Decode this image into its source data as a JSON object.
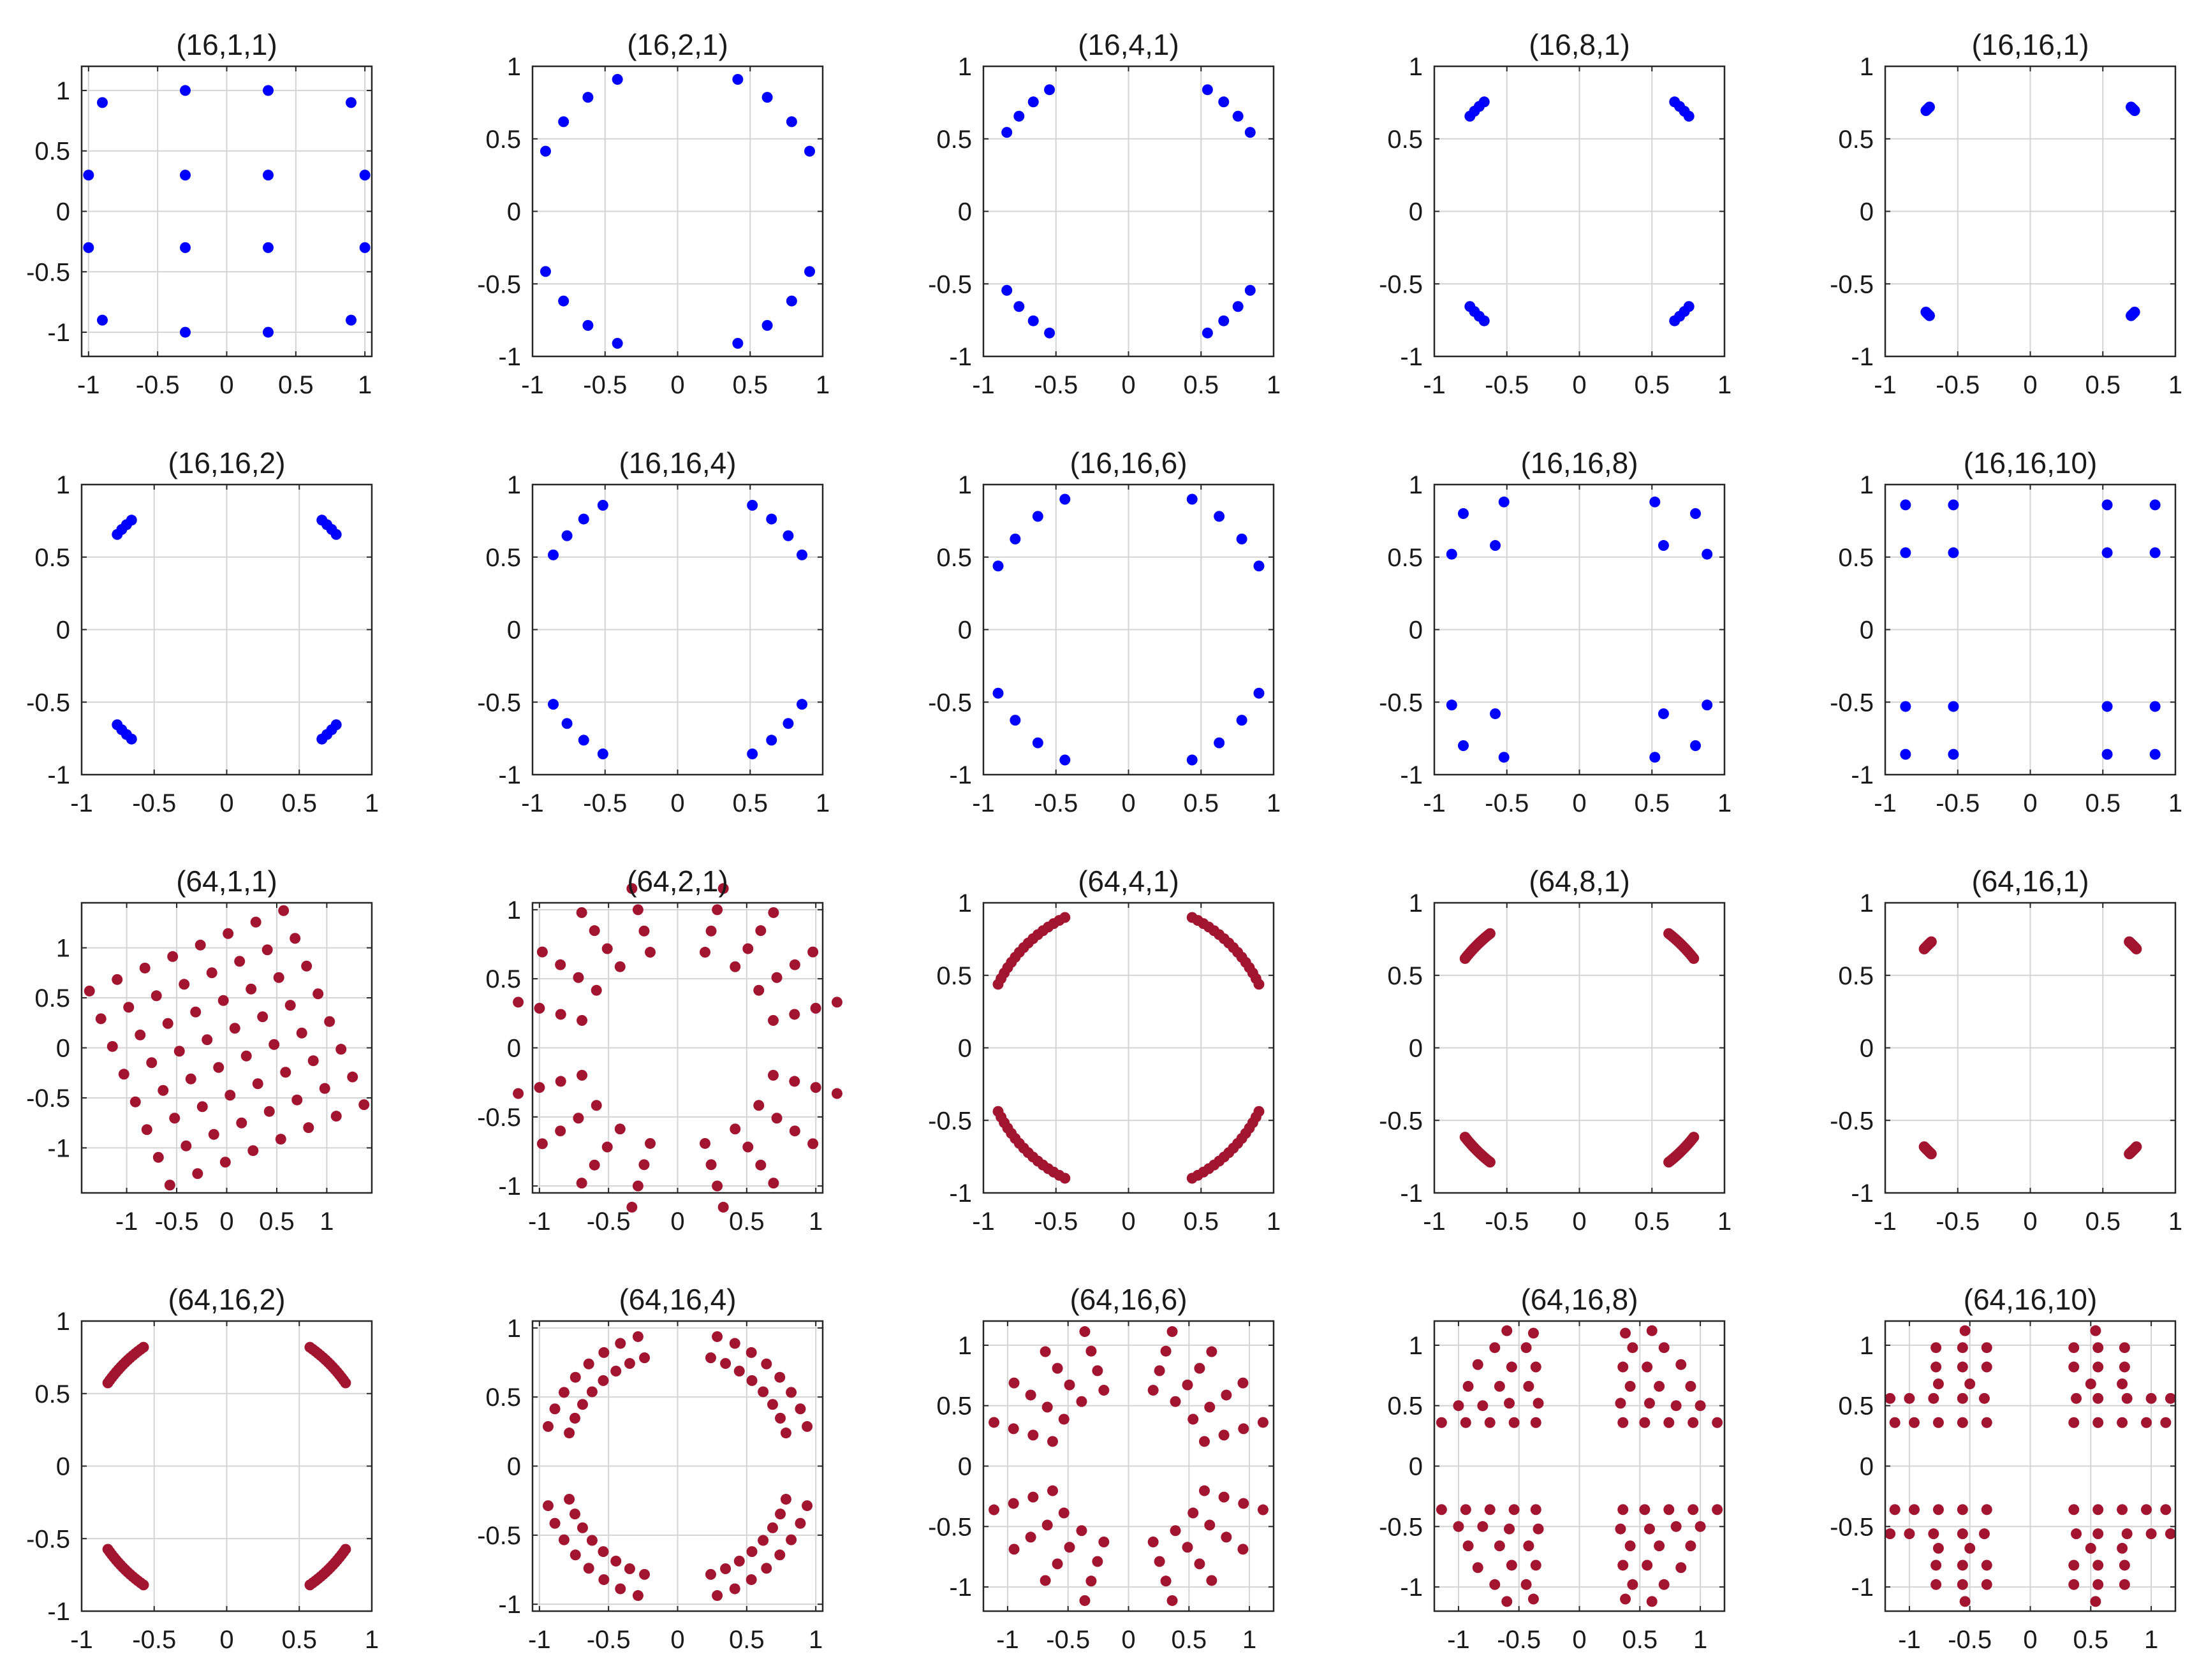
{
  "colors": {
    "blue": "#0000ff",
    "red": "#a2142f",
    "grid": "#d4d4d4",
    "axis": "#262626"
  },
  "chart_data": [
    {
      "type": "scatter",
      "title": "(16,1,1)",
      "color": "blue",
      "grid": true,
      "xlim": [
        -1.05,
        1.05
      ],
      "ylim": [
        -1.2,
        1.2
      ],
      "xticks": [
        -1,
        -0.5,
        0,
        0.5,
        1
      ],
      "xtick_labels": [
        "-1",
        "-0.5",
        "0",
        "0.5",
        "1"
      ],
      "yticks": [
        -1,
        -0.5,
        0,
        0.5,
        1
      ],
      "ytick_labels": [
        "-1",
        "-0.5",
        "0",
        "0.5",
        "1"
      ],
      "gen": {
        "kind": "points",
        "pts": [
          [
            -0.9,
            0.9
          ],
          [
            -0.3,
            1.0
          ],
          [
            0.3,
            1.0
          ],
          [
            0.9,
            0.9
          ],
          [
            -1.0,
            0.3
          ],
          [
            -0.3,
            0.3
          ],
          [
            0.3,
            0.3
          ],
          [
            1.0,
            0.3
          ],
          [
            -1.0,
            -0.3
          ],
          [
            -0.3,
            -0.3
          ],
          [
            0.3,
            -0.3
          ],
          [
            1.0,
            -0.3
          ],
          [
            -0.9,
            -0.9
          ],
          [
            -0.3,
            -1.0
          ],
          [
            0.3,
            -1.0
          ],
          [
            0.9,
            -0.9
          ]
        ]
      }
    },
    {
      "type": "scatter",
      "title": "(16,2,1)",
      "color": "blue",
      "grid": true,
      "xlim": [
        -1,
        1
      ],
      "ylim": [
        -1,
        1
      ],
      "xticks": [
        -1,
        -0.5,
        0,
        0.5,
        1
      ],
      "xtick_labels": [
        "-1",
        "-0.5",
        "0",
        "0.5",
        "1"
      ],
      "yticks": [
        -1,
        -0.5,
        0,
        0.5,
        1
      ],
      "ytick_labels": [
        "-1",
        "-0.5",
        "0",
        "0.5",
        "1"
      ],
      "gen": {
        "kind": "circle",
        "r": 1.0,
        "start_deg": 24.5,
        "end_deg": 65.5,
        "n": 4
      }
    },
    {
      "type": "scatter",
      "title": "(16,4,1)",
      "color": "blue",
      "grid": true,
      "xlim": [
        -1,
        1
      ],
      "ylim": [
        -1,
        1
      ],
      "xticks": [
        -1,
        -0.5,
        0,
        0.5,
        1
      ],
      "xtick_labels": [
        "-1",
        "-0.5",
        "0",
        "0.5",
        "1"
      ],
      "yticks": [
        -1,
        -0.5,
        0,
        0.5,
        1
      ],
      "ytick_labels": [
        "-1",
        "-0.5",
        "0",
        "0.5",
        "1"
      ],
      "gen": {
        "kind": "circle",
        "r": 1.0,
        "start_deg": 33,
        "end_deg": 57,
        "n": 4
      }
    },
    {
      "type": "scatter",
      "title": "(16,8,1)",
      "color": "blue",
      "grid": true,
      "xlim": [
        -1,
        1
      ],
      "ylim": [
        -1,
        1
      ],
      "xticks": [
        -1,
        -0.5,
        0,
        0.5,
        1
      ],
      "xtick_labels": [
        "-1",
        "-0.5",
        "0",
        "0.5",
        "1"
      ],
      "yticks": [
        -1,
        -0.5,
        0,
        0.5,
        1
      ],
      "ytick_labels": [
        "-1",
        "-0.5",
        "0",
        "0.5",
        "1"
      ],
      "gen": {
        "kind": "circle",
        "r": 1.0,
        "start_deg": 41,
        "end_deg": 49,
        "n": 4
      }
    },
    {
      "type": "scatter",
      "title": "(16,16,1)",
      "color": "blue",
      "grid": true,
      "xlim": [
        -1,
        1
      ],
      "ylim": [
        -1,
        1
      ],
      "xticks": [
        -1,
        -0.5,
        0,
        0.5,
        1
      ],
      "xtick_labels": [
        "-1",
        "-0.5",
        "0",
        "0.5",
        "1"
      ],
      "yticks": [
        -1,
        -0.5,
        0,
        0.5,
        1
      ],
      "ytick_labels": [
        "-1",
        "-0.5",
        "0",
        "0.5",
        "1"
      ],
      "gen": {
        "kind": "circle",
        "r": 1.0,
        "start_deg": 44,
        "end_deg": 46,
        "n": 4
      }
    },
    {
      "type": "scatter",
      "title": "(16,16,2)",
      "color": "blue",
      "grid": true,
      "xlim": [
        -1,
        1
      ],
      "ylim": [
        -1,
        1
      ],
      "xticks": [
        -1,
        -0.5,
        0,
        0.5,
        1
      ],
      "xtick_labels": [
        "-1",
        "-0.5",
        "0",
        "0.5",
        "1"
      ],
      "yticks": [
        -1,
        -0.5,
        0,
        0.5,
        1
      ],
      "ytick_labels": [
        "-1",
        "-0.5",
        "0",
        "0.5",
        "1"
      ],
      "gen": {
        "kind": "circle",
        "r": 1.0,
        "start_deg": 41,
        "end_deg": 49,
        "n": 4
      }
    },
    {
      "type": "scatter",
      "title": "(16,16,4)",
      "color": "blue",
      "grid": true,
      "xlim": [
        -1,
        1
      ],
      "ylim": [
        -1,
        1
      ],
      "xticks": [
        -1,
        -0.5,
        0,
        0.5,
        1
      ],
      "xtick_labels": [
        "-1",
        "-0.5",
        "0",
        "0.5",
        "1"
      ],
      "yticks": [
        -1,
        -0.5,
        0,
        0.5,
        1
      ],
      "ytick_labels": [
        "-1",
        "-0.5",
        "0",
        "0.5",
        "1"
      ],
      "gen": {
        "kind": "circle",
        "r": 1.0,
        "start_deg": 31,
        "end_deg": 59,
        "n": 4
      }
    },
    {
      "type": "scatter",
      "title": "(16,16,6)",
      "color": "blue",
      "grid": true,
      "xlim": [
        -1,
        1
      ],
      "ylim": [
        -1,
        1
      ],
      "xticks": [
        -1,
        -0.5,
        0,
        0.5,
        1
      ],
      "xtick_labels": [
        "-1",
        "-0.5",
        "0",
        "0.5",
        "1"
      ],
      "yticks": [
        -1,
        -0.5,
        0,
        0.5,
        1
      ],
      "ytick_labels": [
        "-1",
        "-0.5",
        "0",
        "0.5",
        "1"
      ],
      "gen": {
        "kind": "circle",
        "r": 1.0,
        "start_deg": 26,
        "end_deg": 64,
        "n": 4
      }
    },
    {
      "type": "scatter",
      "title": "(16,16,8)",
      "color": "blue",
      "grid": true,
      "xlim": [
        -1,
        1
      ],
      "ylim": [
        -1,
        1
      ],
      "xticks": [
        -1,
        -0.5,
        0,
        0.5,
        1
      ],
      "xtick_labels": [
        "-1",
        "-0.5",
        "0",
        "0.5",
        "1"
      ],
      "yticks": [
        -1,
        -0.5,
        0,
        0.5,
        1
      ],
      "ytick_labels": [
        "-1",
        "-0.5",
        "0",
        "0.5",
        "1"
      ],
      "gen": {
        "kind": "mirror",
        "pts": [
          [
            0.52,
            0.88
          ],
          [
            0.8,
            0.8
          ],
          [
            0.58,
            0.58
          ],
          [
            0.88,
            0.52
          ]
        ]
      }
    },
    {
      "type": "scatter",
      "title": "(16,16,10)",
      "color": "blue",
      "grid": true,
      "xlim": [
        -1,
        1
      ],
      "ylim": [
        -1,
        1
      ],
      "xticks": [
        -1,
        -0.5,
        0,
        0.5,
        1
      ],
      "xtick_labels": [
        "-1",
        "-0.5",
        "0",
        "0.5",
        "1"
      ],
      "yticks": [
        -1,
        -0.5,
        0,
        0.5,
        1
      ],
      "ytick_labels": [
        "-1",
        "-0.5",
        "0",
        "0.5",
        "1"
      ],
      "gen": {
        "kind": "mirror",
        "pts": [
          [
            0.53,
            0.86
          ],
          [
            0.86,
            0.86
          ],
          [
            0.53,
            0.53
          ],
          [
            0.86,
            0.53
          ]
        ]
      }
    },
    {
      "type": "scatter",
      "title": "(64,1,1)",
      "color": "red",
      "grid": true,
      "xlim": [
        -1.45,
        1.45
      ],
      "ylim": [
        -1.45,
        1.45
      ],
      "xticks": [
        -1,
        -0.5,
        0,
        0.5,
        1
      ],
      "xtick_labels": [
        "-1",
        "-0.5",
        "0",
        "0.5",
        "1"
      ],
      "yticks": [
        -1,
        -0.5,
        0,
        0.5,
        1
      ],
      "ytick_labels": [
        "-1",
        "-0.5",
        "0",
        "0.5",
        "1"
      ],
      "gen": {
        "kind": "rotgrid",
        "n": 8,
        "step": 0.3,
        "rot_deg": 22.5
      }
    },
    {
      "type": "scatter",
      "title": "(64,2,1)",
      "color": "red",
      "grid": true,
      "xlim": [
        -1.05,
        1.05
      ],
      "ylim": [
        -1.05,
        1.05
      ],
      "xticks": [
        -1,
        -0.5,
        0,
        0.5,
        1
      ],
      "xtick_labels": [
        "-1",
        "-0.5",
        "0",
        "0.5",
        "1"
      ],
      "yticks": [
        -1,
        -0.5,
        0,
        0.5,
        1
      ],
      "ytick_labels": [
        "-1",
        "-0.5",
        "0",
        "0.5",
        "1"
      ],
      "gen": {
        "kind": "band",
        "radii": [
          0.72,
          0.88,
          1.04,
          1.2
        ],
        "start_deg": 16,
        "end_deg": 74,
        "n": 4
      }
    },
    {
      "type": "scatter",
      "title": "(64,4,1)",
      "color": "red",
      "grid": true,
      "xlim": [
        -1,
        1
      ],
      "ylim": [
        -1,
        1
      ],
      "xticks": [
        -1,
        -0.5,
        0,
        0.5,
        1
      ],
      "xtick_labels": [
        "-1",
        "-0.5",
        "0",
        "0.5",
        "1"
      ],
      "yticks": [
        -1,
        -0.5,
        0,
        0.5,
        1
      ],
      "ytick_labels": [
        "-1",
        "-0.5",
        "0",
        "0.5",
        "1"
      ],
      "gen": {
        "kind": "circle",
        "r": 1.0,
        "start_deg": 26,
        "end_deg": 64,
        "n": 16
      }
    },
    {
      "type": "scatter",
      "title": "(64,8,1)",
      "color": "red",
      "grid": true,
      "xlim": [
        -1,
        1
      ],
      "ylim": [
        -1,
        1
      ],
      "xticks": [
        -1,
        -0.5,
        0,
        0.5,
        1
      ],
      "xtick_labels": [
        "-1",
        "-0.5",
        "0",
        "0.5",
        "1"
      ],
      "yticks": [
        -1,
        -0.5,
        0,
        0.5,
        1
      ],
      "ytick_labels": [
        "-1",
        "-0.5",
        "0",
        "0.5",
        "1"
      ],
      "gen": {
        "kind": "circle",
        "r": 1.0,
        "start_deg": 38,
        "end_deg": 52,
        "n": 16
      }
    },
    {
      "type": "scatter",
      "title": "(64,16,1)",
      "color": "red",
      "grid": true,
      "xlim": [
        -1,
        1
      ],
      "ylim": [
        -1,
        1
      ],
      "xticks": [
        -1,
        -0.5,
        0,
        0.5,
        1
      ],
      "xtick_labels": [
        "-1",
        "-0.5",
        "0",
        "0.5",
        "1"
      ],
      "yticks": [
        -1,
        -0.5,
        0,
        0.5,
        1
      ],
      "ytick_labels": [
        "-1",
        "-0.5",
        "0",
        "0.5",
        "1"
      ],
      "gen": {
        "kind": "circle",
        "r": 1.0,
        "start_deg": 43,
        "end_deg": 47,
        "n": 16
      }
    },
    {
      "type": "scatter",
      "title": "(64,16,2)",
      "color": "red",
      "grid": true,
      "xlim": [
        -1,
        1
      ],
      "ylim": [
        -1,
        1
      ],
      "xticks": [
        -1,
        -0.5,
        0,
        0.5,
        1
      ],
      "xtick_labels": [
        "-1",
        "-0.5",
        "0",
        "0.5",
        "1"
      ],
      "yticks": [
        -1,
        -0.5,
        0,
        0.5,
        1
      ],
      "ytick_labels": [
        "-1",
        "-0.5",
        "0",
        "0.5",
        "1"
      ],
      "gen": {
        "kind": "circle",
        "r": 1.0,
        "start_deg": 35,
        "end_deg": 55,
        "n": 16
      }
    },
    {
      "type": "scatter",
      "title": "(64,16,4)",
      "color": "red",
      "grid": true,
      "xlim": [
        -1.05,
        1.05
      ],
      "ylim": [
        -1.05,
        1.05
      ],
      "xticks": [
        -1,
        -0.5,
        0,
        0.5,
        1
      ],
      "xtick_labels": [
        "-1",
        "-0.5",
        "0",
        "0.5",
        "1"
      ],
      "yticks": [
        -1,
        -0.5,
        0,
        0.5,
        1
      ],
      "ytick_labels": [
        "-1",
        "-0.5",
        "0",
        "0.5",
        "1"
      ],
      "gen": {
        "kind": "band",
        "radii": [
          0.82,
          0.98
        ],
        "start_deg": 17,
        "end_deg": 73,
        "n": 8
      }
    },
    {
      "type": "scatter",
      "title": "(64,16,6)",
      "color": "red",
      "grid": true,
      "xlim": [
        -1.2,
        1.2
      ],
      "ylim": [
        -1.2,
        1.2
      ],
      "xticks": [
        -1,
        -0.5,
        0,
        0.5,
        1
      ],
      "xtick_labels": [
        "-1",
        "-0.5",
        "0",
        "0.5",
        "1"
      ],
      "yticks": [
        -1,
        -0.5,
        0,
        0.5,
        1
      ],
      "ytick_labels": [
        "-1",
        "-0.5",
        "0",
        "0.5",
        "1"
      ],
      "gen": {
        "kind": "band",
        "radii": [
          0.66,
          0.83,
          1.0,
          1.17
        ],
        "start_deg": 18,
        "end_deg": 72,
        "n": 4
      }
    },
    {
      "type": "scatter",
      "title": "(64,16,8)",
      "color": "red",
      "grid": true,
      "xlim": [
        -1.2,
        1.2
      ],
      "ylim": [
        -1.2,
        1.2
      ],
      "xticks": [
        -1,
        -0.5,
        0,
        0.5,
        1
      ],
      "xtick_labels": [
        "-1",
        "-0.5",
        "0",
        "0.5",
        "1"
      ],
      "yticks": [
        -1,
        -0.5,
        0,
        0.5,
        1
      ],
      "ytick_labels": [
        "-1",
        "-0.5",
        "0",
        "0.5",
        "1"
      ],
      "gen": {
        "kind": "quadpts",
        "pts": [
          [
            0.38,
            1.1
          ],
          [
            0.6,
            1.12
          ],
          [
            0.44,
            0.98
          ],
          [
            0.7,
            0.98
          ],
          [
            0.36,
            0.82
          ],
          [
            0.56,
            0.82
          ],
          [
            0.84,
            0.84
          ],
          [
            0.42,
            0.66
          ],
          [
            0.66,
            0.66
          ],
          [
            0.92,
            0.66
          ],
          [
            0.34,
            0.52
          ],
          [
            0.58,
            0.52
          ],
          [
            0.8,
            0.5
          ],
          [
            1.0,
            0.5
          ],
          [
            0.36,
            0.36
          ],
          [
            0.54,
            0.36
          ],
          [
            0.74,
            0.36
          ],
          [
            0.94,
            0.36
          ],
          [
            1.14,
            0.36
          ]
        ]
      }
    },
    {
      "type": "scatter",
      "title": "(64,16,10)",
      "color": "red",
      "grid": true,
      "xlim": [
        -1.2,
        1.2
      ],
      "ylim": [
        -1.2,
        1.2
      ],
      "xticks": [
        -1,
        -0.5,
        0,
        0.5,
        1
      ],
      "xtick_labels": [
        "-1",
        "-0.5",
        "0",
        "0.5",
        "1"
      ],
      "yticks": [
        -1,
        -0.5,
        0,
        0.5,
        1
      ],
      "ytick_labels": [
        "-1",
        "-0.5",
        "0",
        "0.5",
        "1"
      ],
      "gen": {
        "kind": "quadpts",
        "pts": [
          [
            0.54,
            1.12
          ],
          [
            0.36,
            0.98
          ],
          [
            0.56,
            0.98
          ],
          [
            0.78,
            0.98
          ],
          [
            0.36,
            0.82
          ],
          [
            0.56,
            0.82
          ],
          [
            0.78,
            0.82
          ],
          [
            0.5,
            0.68
          ],
          [
            0.76,
            0.68
          ],
          [
            0.38,
            0.56
          ],
          [
            0.56,
            0.56
          ],
          [
            0.8,
            0.56
          ],
          [
            1.0,
            0.56
          ],
          [
            1.16,
            0.56
          ],
          [
            0.36,
            0.36
          ],
          [
            0.56,
            0.36
          ],
          [
            0.76,
            0.36
          ],
          [
            0.96,
            0.36
          ],
          [
            1.12,
            0.36
          ]
        ]
      }
    }
  ]
}
